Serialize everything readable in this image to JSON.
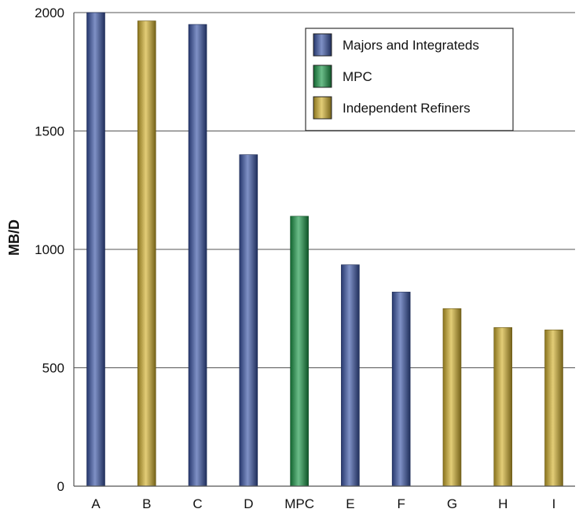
{
  "chart_data": {
    "type": "bar",
    "title": "",
    "xlabel": "",
    "ylabel": "MB/D",
    "ylim": [
      0,
      2000
    ],
    "yticks": [
      0,
      500,
      1000,
      1500,
      2000
    ],
    "grid": true,
    "legend_position": "top-right",
    "categories": [
      "A",
      "B",
      "C",
      "D",
      "MPC",
      "E",
      "F",
      "G",
      "H",
      "I"
    ],
    "values": [
      2000,
      1965,
      1950,
      1400,
      1140,
      935,
      820,
      750,
      670,
      660
    ],
    "groups": [
      "majors",
      "independent",
      "majors",
      "majors",
      "mpc",
      "majors",
      "majors",
      "independent",
      "independent",
      "independent"
    ],
    "legend": [
      {
        "key": "majors",
        "label": "Majors and Integrateds",
        "color": "#3a55a8"
      },
      {
        "key": "mpc",
        "label": "MPC",
        "color": "#1c9a49"
      },
      {
        "key": "independent",
        "label": "Independent Refiners",
        "color": "#d4b22e"
      }
    ]
  }
}
